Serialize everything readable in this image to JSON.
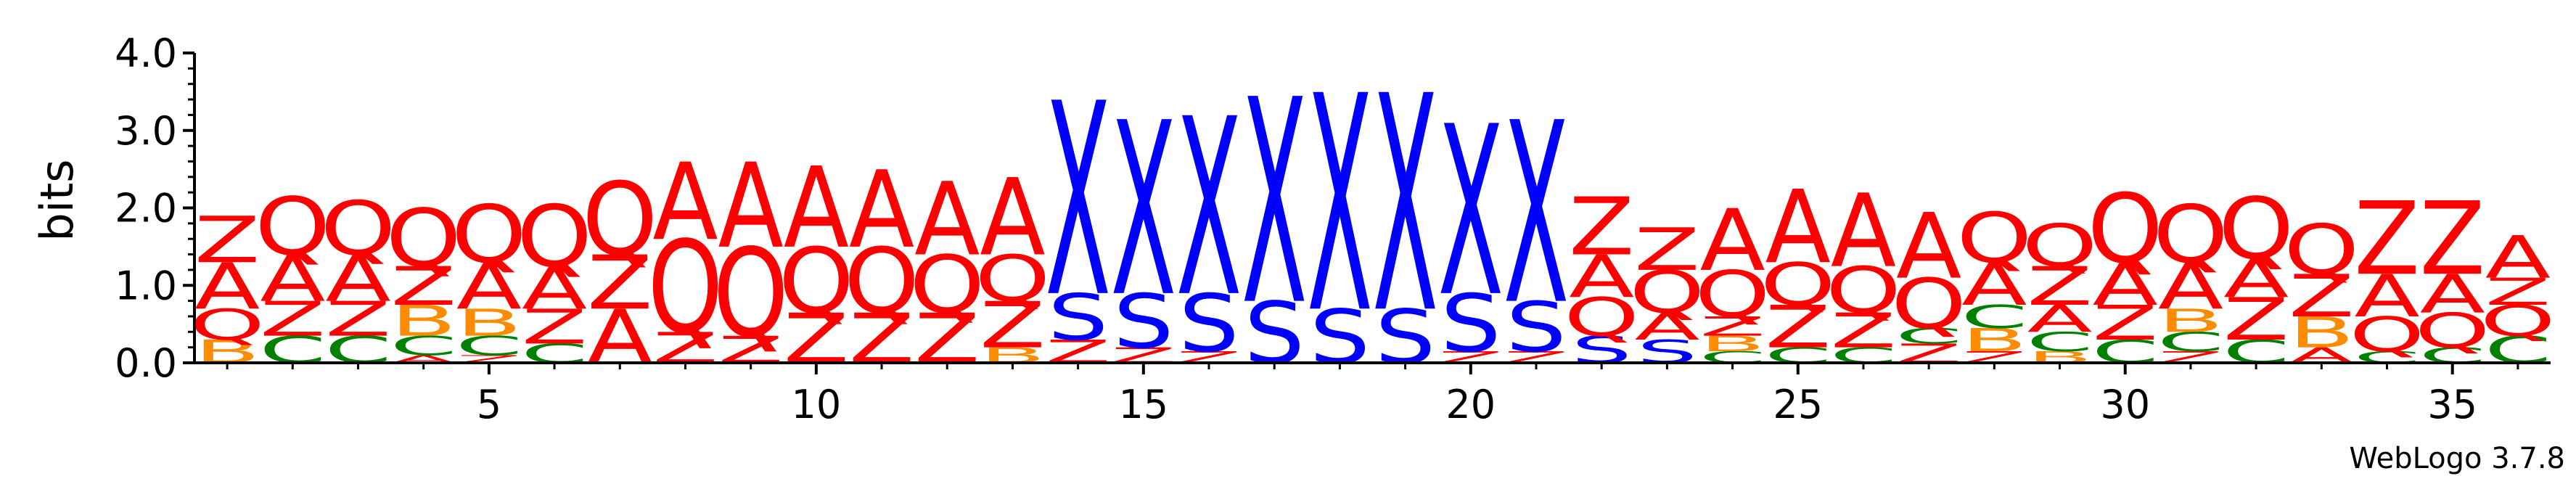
{
  "chart_data": {
    "type": "sequence-logo",
    "ylabel": "bits",
    "ylim": [
      0,
      4.0
    ],
    "yticks": [
      "0.0",
      "1.0",
      "2.0",
      "3.0",
      "4.0"
    ],
    "xticks": [
      "5",
      "10",
      "15",
      "20",
      "25",
      "30",
      "35"
    ],
    "xtick_positions": [
      5,
      10,
      15,
      20,
      25,
      30,
      35
    ],
    "credit": "WebLogo 3.7.8",
    "colors": {
      "A": "#ff0000",
      "Q": "#ff0000",
      "Z": "#ff0000",
      "X": "#0000ff",
      "S": "#0000ff",
      "C": "#008000",
      "B": "#ff8c00"
    },
    "positions": [
      [
        [
          "B",
          0.3
        ],
        [
          "Q",
          0.4
        ],
        [
          "A",
          0.6
        ],
        [
          "Z",
          0.6
        ]
      ],
      [
        [
          "C",
          0.35
        ],
        [
          "Z",
          0.45
        ],
        [
          "A",
          0.6
        ],
        [
          "Q",
          0.75
        ]
      ],
      [
        [
          "C",
          0.35
        ],
        [
          "Z",
          0.45
        ],
        [
          "A",
          0.6
        ],
        [
          "Q",
          0.7
        ]
      ],
      [
        [
          "A",
          0.1
        ],
        [
          "C",
          0.25
        ],
        [
          "B",
          0.4
        ],
        [
          "Z",
          0.5
        ],
        [
          "Q",
          0.75
        ]
      ],
      [
        [
          "Z",
          0.1
        ],
        [
          "C",
          0.25
        ],
        [
          "B",
          0.35
        ],
        [
          "A",
          0.6
        ],
        [
          "Q",
          0.75
        ]
      ],
      [
        [
          "C",
          0.25
        ],
        [
          "Z",
          0.45
        ],
        [
          "A",
          0.55
        ],
        [
          "Q",
          0.8
        ]
      ],
      [
        [
          "A",
          0.7
        ],
        [
          "Z",
          0.7
        ],
        [
          "Q",
          0.95
        ]
      ],
      [
        [
          "Z",
          0.4
        ],
        [
          "Q",
          1.2
        ],
        [
          "A",
          1.0
        ]
      ],
      [
        [
          "Z",
          0.35
        ],
        [
          "Q",
          1.15
        ],
        [
          "A",
          1.1
        ]
      ],
      [
        [
          "Z",
          0.65
        ],
        [
          "Q",
          0.85
        ],
        [
          "A",
          1.05
        ]
      ],
      [
        [
          "Z",
          0.65
        ],
        [
          "Q",
          0.85
        ],
        [
          "A",
          1.0
        ]
      ],
      [
        [
          "Z",
          0.65
        ],
        [
          "Q",
          0.75
        ],
        [
          "A",
          0.95
        ]
      ],
      [
        [
          "B",
          0.2
        ],
        [
          "Z",
          0.6
        ],
        [
          "Q",
          0.6
        ],
        [
          "A",
          1.0
        ]
      ],
      [
        [
          "Z",
          0.3
        ],
        [
          "S",
          0.6
        ],
        [
          "X",
          2.5
        ]
      ],
      [
        [
          "Z",
          0.2
        ],
        [
          "S",
          0.7
        ],
        [
          "X",
          2.25
        ]
      ],
      [
        [
          "Z",
          0.15
        ],
        [
          "S",
          0.75
        ],
        [
          "X",
          2.3
        ]
      ],
      [
        [
          "S",
          0.8
        ],
        [
          "X",
          2.65
        ]
      ],
      [
        [
          "S",
          0.7
        ],
        [
          "X",
          2.8
        ]
      ],
      [
        [
          "S",
          0.7
        ],
        [
          "X",
          2.8
        ]
      ],
      [
        [
          "Z",
          0.15
        ],
        [
          "S",
          0.75
        ],
        [
          "X",
          2.2
        ]
      ],
      [
        [
          "Z",
          0.15
        ],
        [
          "S",
          0.65
        ],
        [
          "X",
          2.35
        ]
      ],
      [
        [
          "S",
          0.35
        ],
        [
          "Q",
          0.5
        ],
        [
          "A",
          0.55
        ],
        [
          "Z",
          0.75
        ]
      ],
      [
        [
          "S",
          0.3
        ],
        [
          "A",
          0.35
        ],
        [
          "Q",
          0.55
        ],
        [
          "Z",
          0.55
        ]
      ],
      [
        [
          "C",
          0.15
        ],
        [
          "B",
          0.2
        ],
        [
          "Z",
          0.25
        ],
        [
          "Q",
          0.6
        ],
        [
          "A",
          0.8
        ]
      ],
      [
        [
          "C",
          0.2
        ],
        [
          "Z",
          0.55
        ],
        [
          "Q",
          0.55
        ],
        [
          "A",
          0.95
        ]
      ],
      [
        [
          "C",
          0.2
        ],
        [
          "Z",
          0.45
        ],
        [
          "Q",
          0.6
        ],
        [
          "A",
          0.95
        ]
      ],
      [
        [
          "Z",
          0.25
        ],
        [
          "C",
          0.2
        ],
        [
          "Q",
          0.65
        ],
        [
          "A",
          0.85
        ]
      ],
      [
        [
          "Z",
          0.15
        ],
        [
          "B",
          0.3
        ],
        [
          "C",
          0.3
        ],
        [
          "A",
          0.55
        ],
        [
          "Q",
          0.65
        ]
      ],
      [
        [
          "B",
          0.15
        ],
        [
          "C",
          0.25
        ],
        [
          "A",
          0.35
        ],
        [
          "Z",
          0.5
        ],
        [
          "Q",
          0.55
        ]
      ],
      [
        [
          "C",
          0.3
        ],
        [
          "Z",
          0.45
        ],
        [
          "A",
          0.55
        ],
        [
          "Q",
          0.9
        ]
      ],
      [
        [
          "Z",
          0.15
        ],
        [
          "C",
          0.25
        ],
        [
          "B",
          0.3
        ],
        [
          "A",
          0.6
        ],
        [
          "Q",
          0.75
        ]
      ],
      [
        [
          "C",
          0.3
        ],
        [
          "Z",
          0.55
        ],
        [
          "A",
          0.5
        ],
        [
          "Q",
          0.8
        ]
      ],
      [
        [
          "A",
          0.2
        ],
        [
          "B",
          0.4
        ],
        [
          "Z",
          0.55
        ],
        [
          "Q",
          0.65
        ]
      ],
      [
        [
          "C",
          0.15
        ],
        [
          "Q",
          0.45
        ],
        [
          "A",
          0.55
        ],
        [
          "Z",
          0.95
        ]
      ],
      [
        [
          "C",
          0.2
        ],
        [
          "Q",
          0.45
        ],
        [
          "A",
          0.5
        ],
        [
          "Z",
          0.95
        ]
      ],
      [
        [
          "C",
          0.35
        ],
        [
          "Q",
          0.4
        ],
        [
          "Z",
          0.35
        ],
        [
          "A",
          0.55
        ]
      ]
    ]
  }
}
